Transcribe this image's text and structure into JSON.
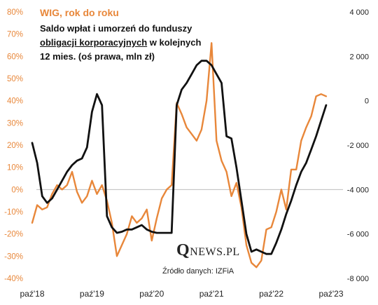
{
  "chart_data": {
    "type": "line",
    "title_orange": "WIG, rok do roku",
    "title_black_1": "Saldo wpłat i umorzeń do funduszy ",
    "title_black_ul": "obligacji korporacyjnych",
    "title_black_2": " w kolejnych 12 mies. (oś prawa, mln zł)",
    "left_axis": {
      "ylim": [
        -40,
        80
      ],
      "ticks": [
        "80%",
        "70%",
        "60%",
        "50%",
        "40%",
        "30%",
        "20%",
        "10%",
        "0%",
        "-10%",
        "-20%",
        "-30%",
        "-40%"
      ],
      "color": "#e8873a"
    },
    "right_axis": {
      "ylim": [
        -8000,
        4000
      ],
      "ticks": [
        "4 000",
        "2 000",
        "0",
        "-2 000",
        "-4 000",
        "-6 000",
        "-8 000"
      ],
      "color": "#222222"
    },
    "x_axis": {
      "labels": [
        "paź'18",
        "paź'19",
        "paź'20",
        "paź'21",
        "paź'22",
        "paź'23"
      ],
      "range": [
        2018.75,
        2023.75
      ]
    },
    "grid": false,
    "series": [
      {
        "name": "WIG, rok do roku",
        "axis": "left",
        "color": "#e8873a",
        "x": [
          2018.75,
          2018.833,
          2018.917,
          2019.0,
          2019.083,
          2019.167,
          2019.25,
          2019.333,
          2019.417,
          2019.5,
          2019.583,
          2019.667,
          2019.75,
          2019.833,
          2019.917,
          2020.0,
          2020.083,
          2020.167,
          2020.25,
          2020.333,
          2020.417,
          2020.5,
          2020.583,
          2020.667,
          2020.75,
          2020.833,
          2020.917,
          2021.0,
          2021.083,
          2021.167,
          2021.25,
          2021.333,
          2021.417,
          2021.5,
          2021.583,
          2021.667,
          2021.75,
          2021.833,
          2021.917,
          2022.0,
          2022.083,
          2022.167,
          2022.25,
          2022.333,
          2022.417,
          2022.5,
          2022.583,
          2022.667,
          2022.75,
          2022.833,
          2022.917,
          2023.0,
          2023.083,
          2023.167,
          2023.25,
          2023.333,
          2023.417,
          2023.5,
          2023.583,
          2023.667
        ],
        "values": [
          -15,
          -7,
          -9,
          -8,
          -2,
          2,
          0,
          2,
          8,
          -1,
          -6,
          -3,
          4,
          -2,
          2,
          -5,
          -15,
          -30,
          -25,
          -20,
          -12,
          -15,
          -13,
          -9,
          -23,
          -13,
          -4,
          0,
          2,
          39,
          34,
          28,
          25,
          22,
          27,
          40,
          66,
          22,
          13,
          8,
          -3,
          3,
          -8,
          -25,
          -33,
          -35,
          -32,
          -18,
          -17,
          -10,
          0,
          -9,
          9,
          9,
          22,
          28,
          33,
          42,
          43,
          42
        ]
      },
      {
        "name": "Saldo wpłat i umorzeń do funduszy obligacji korporacyjnych",
        "axis": "right",
        "color": "#111111",
        "x": [
          2018.75,
          2018.833,
          2018.917,
          2019.0,
          2019.083,
          2019.167,
          2019.25,
          2019.333,
          2019.417,
          2019.5,
          2019.583,
          2019.667,
          2019.75,
          2019.833,
          2019.917,
          2020.0,
          2020.083,
          2020.167,
          2020.25,
          2020.333,
          2020.417,
          2020.5,
          2020.583,
          2020.667,
          2020.75,
          2020.833,
          2020.917,
          2021.0,
          2021.083,
          2021.167,
          2021.25,
          2021.333,
          2021.417,
          2021.5,
          2021.583,
          2021.667,
          2021.75,
          2021.833,
          2021.917,
          2022.0,
          2022.083,
          2022.167,
          2022.25,
          2022.333,
          2022.417,
          2022.5,
          2022.583,
          2022.667,
          2022.75,
          2022.833,
          2022.917,
          2023.0,
          2023.083,
          2023.167,
          2023.25,
          2023.333,
          2023.417,
          2023.5,
          2023.583,
          2023.667
        ],
        "values": [
          -1900,
          -2800,
          -4300,
          -4600,
          -4400,
          -4000,
          -3600,
          -3200,
          -2900,
          -2700,
          -2600,
          -2100,
          -500,
          300,
          -200,
          -5200,
          -5700,
          -5950,
          -5900,
          -5800,
          -5800,
          -5700,
          -5600,
          -5800,
          -5900,
          -5950,
          -5950,
          -5950,
          -5950,
          -200,
          500,
          800,
          1200,
          1600,
          1800,
          1800,
          1600,
          1200,
          800,
          -1600,
          -1700,
          -3000,
          -4500,
          -6000,
          -6800,
          -6700,
          -6800,
          -6900,
          -6900,
          -6400,
          -5800,
          -5100,
          -4500,
          -3800,
          -3200,
          -2800,
          -2200,
          -1600,
          -900,
          -200
        ]
      }
    ]
  },
  "source": "Źródło danych: IZFiA",
  "logo": {
    "q": "Q",
    "rest": "NEWS.PL"
  }
}
